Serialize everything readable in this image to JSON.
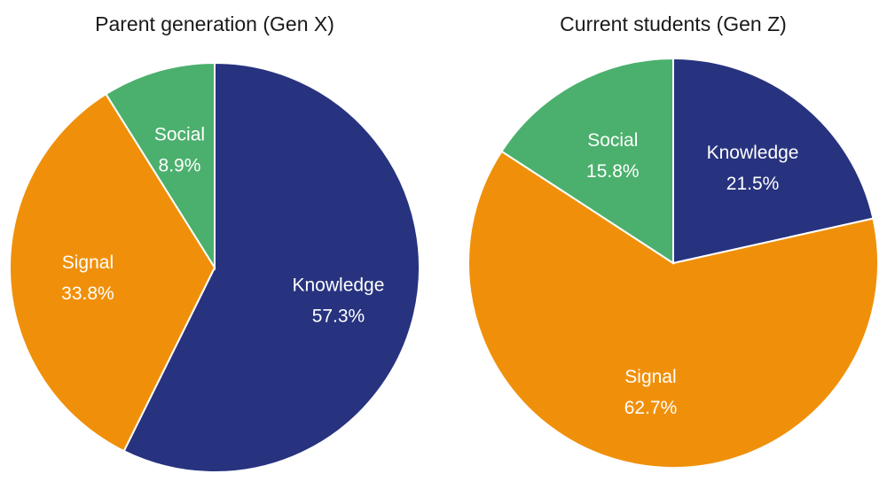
{
  "colors": {
    "Knowledge": "#27337f",
    "Signal": "#f0900a",
    "Social": "#4bb06d"
  },
  "chart_data": [
    {
      "type": "pie",
      "title": "Parent generation (Gen X)",
      "slices": [
        {
          "label": "Knowledge",
          "value": 57.3,
          "text": "57.3%"
        },
        {
          "label": "Signal",
          "value": 33.8,
          "text": "33.8%"
        },
        {
          "label": "Social",
          "value": 8.9,
          "text": "8.9%"
        }
      ]
    },
    {
      "type": "pie",
      "title": "Current students (Gen Z)",
      "slices": [
        {
          "label": "Knowledge",
          "value": 21.5,
          "text": "21.5%"
        },
        {
          "label": "Signal",
          "value": 62.7,
          "text": "62.7%"
        },
        {
          "label": "Social",
          "value": 15.8,
          "text": "15.8%"
        }
      ]
    }
  ]
}
